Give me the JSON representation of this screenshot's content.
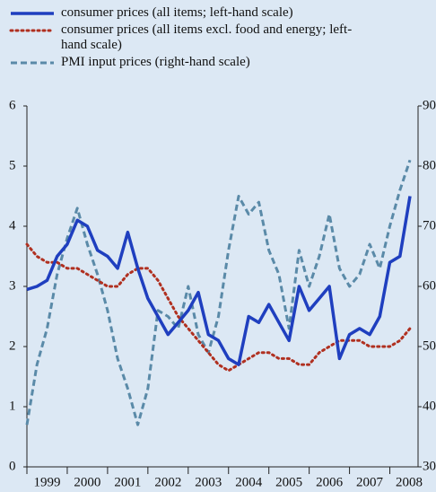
{
  "chart_data": {
    "type": "line",
    "x": [
      1999.0,
      1999.25,
      1999.5,
      1999.75,
      2000.0,
      2000.25,
      2000.5,
      2000.75,
      2001.0,
      2001.25,
      2001.5,
      2001.75,
      2002.0,
      2002.25,
      2002.5,
      2002.75,
      2003.0,
      2003.25,
      2003.5,
      2003.75,
      2004.0,
      2004.25,
      2004.5,
      2004.75,
      2005.0,
      2005.25,
      2005.5,
      2005.75,
      2006.0,
      2006.25,
      2006.5,
      2006.75,
      2007.0,
      2007.25,
      2007.5,
      2007.75,
      2008.0,
      2008.25,
      2008.5
    ],
    "xlim": [
      1999,
      2008.7
    ],
    "xticks": [
      1999,
      2000,
      2001,
      2002,
      2003,
      2004,
      2005,
      2006,
      2007,
      2008
    ],
    "ylim": [
      0,
      6
    ],
    "yticks": [
      0,
      1,
      2,
      3,
      4,
      5,
      6
    ],
    "y2lim": [
      30,
      90
    ],
    "y2ticks": [
      30,
      40,
      50,
      60,
      70,
      80,
      90
    ],
    "series": [
      {
        "name": "consumer prices (all items; left-hand scale)",
        "color": "#1f3fbf",
        "style": "solid",
        "values": [
          2.95,
          3.0,
          3.1,
          3.5,
          3.7,
          4.1,
          4.0,
          3.6,
          3.5,
          3.3,
          3.9,
          3.3,
          2.8,
          2.5,
          2.2,
          2.4,
          2.6,
          2.9,
          2.2,
          2.1,
          1.8,
          1.7,
          2.5,
          2.4,
          2.7,
          2.4,
          2.1,
          3.0,
          2.6,
          2.8,
          3.0,
          1.8,
          2.2,
          2.3,
          2.2,
          2.5,
          3.4,
          3.5,
          4.5
        ]
      },
      {
        "name": "consumer prices (all items excl. food and energy; left-hand scale)",
        "color": "#b03020",
        "style": "dotted",
        "values": [
          3.7,
          3.5,
          3.4,
          3.4,
          3.3,
          3.3,
          3.2,
          3.1,
          3.0,
          3.0,
          3.2,
          3.3,
          3.3,
          3.1,
          2.8,
          2.5,
          2.3,
          2.1,
          1.9,
          1.7,
          1.6,
          1.7,
          1.8,
          1.9,
          1.9,
          1.8,
          1.8,
          1.7,
          1.7,
          1.9,
          2.0,
          2.1,
          2.1,
          2.1,
          2.0,
          2.0,
          2.0,
          2.1,
          2.3
        ]
      },
      {
        "name": "PMI input prices (right-hand scale)",
        "color": "#5a8aa8",
        "style": "dashed",
        "axis": "y2",
        "values": [
          37,
          47,
          53,
          62,
          68,
          73,
          67,
          62,
          56,
          48,
          43,
          37,
          43,
          56,
          55,
          53,
          60,
          52,
          49,
          55,
          66,
          75,
          72,
          74,
          66,
          62,
          53,
          66,
          60,
          65,
          72,
          63,
          60,
          62,
          67,
          63,
          70,
          76,
          81
        ]
      }
    ]
  }
}
